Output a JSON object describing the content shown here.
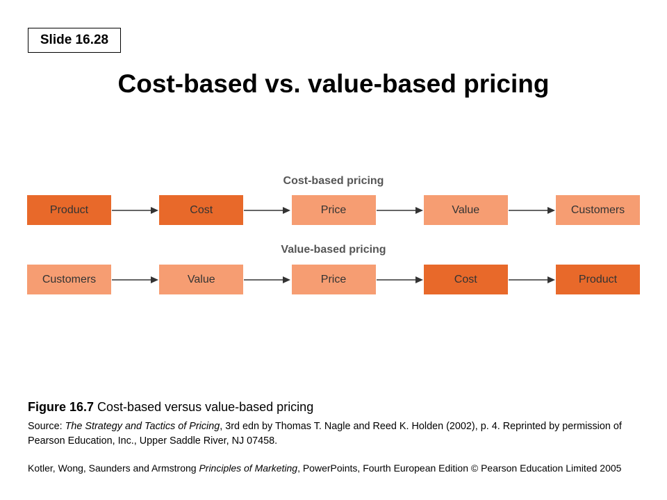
{
  "slide_label": "Slide 16.28",
  "title": "Cost-based vs. value-based pricing",
  "colors": {
    "dark": "#e8692a",
    "light": "#f69d72",
    "text": "#333333",
    "arrow": "#333333"
  },
  "rows": [
    {
      "heading": "Cost-based pricing",
      "boxes": [
        {
          "label": "Product",
          "shade": "dark"
        },
        {
          "label": "Cost",
          "shade": "dark"
        },
        {
          "label": "Price",
          "shade": "light"
        },
        {
          "label": "Value",
          "shade": "light"
        },
        {
          "label": "Customers",
          "shade": "light"
        }
      ]
    },
    {
      "heading": "Value-based pricing",
      "boxes": [
        {
          "label": "Customers",
          "shade": "light"
        },
        {
          "label": "Value",
          "shade": "light"
        },
        {
          "label": "Price",
          "shade": "light"
        },
        {
          "label": "Cost",
          "shade": "dark"
        },
        {
          "label": "Product",
          "shade": "dark"
        }
      ]
    }
  ],
  "caption": {
    "figure": "Figure 16.7",
    "text": " Cost-based versus value-based pricing"
  },
  "source": {
    "label": "Source",
    "sep": ": ",
    "book": "The Strategy and Tactics of Pricing",
    "rest": ", 3rd edn by Thomas T. Nagle and Reed K. Holden (2002), p. 4. Reprinted by permission of Pearson Education, Inc., Upper Saddle River, NJ 07458."
  },
  "footer": {
    "authors": "Kotler, Wong, Saunders and Armstrong ",
    "book": "Principles of Marketing",
    "rest": ", PowerPoints, Fourth European Edition © Pearson Education Limited 2005"
  }
}
